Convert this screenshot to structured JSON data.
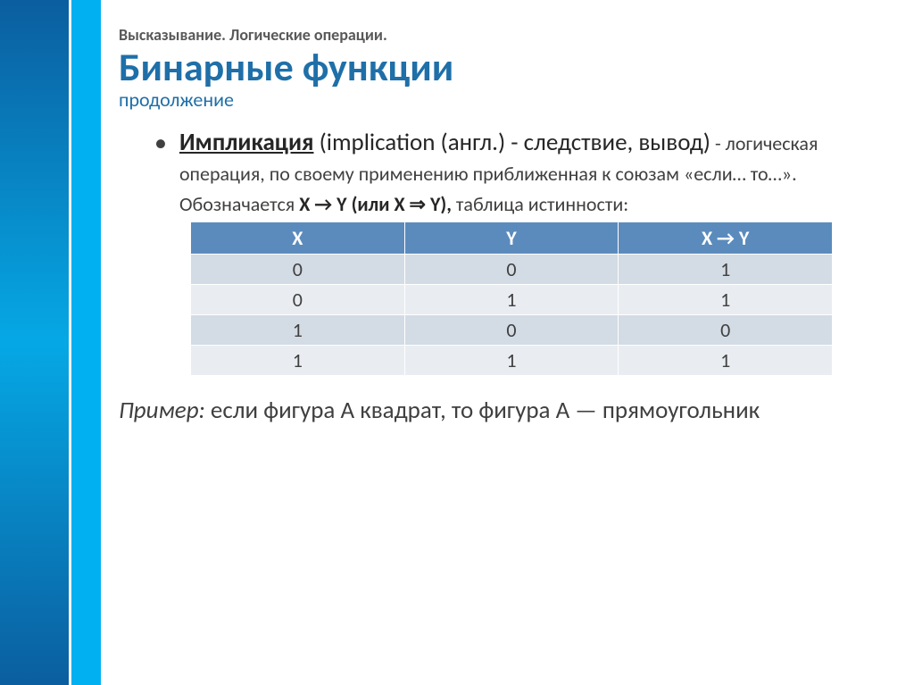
{
  "sidebar": {
    "gradient_top": "#0b5e9f",
    "gradient_mid": "#05a8e5",
    "gradient_bottom": "#0b5e9f",
    "solid_color": "#00b0f0"
  },
  "overline": "Высказывание. Логические операции.",
  "title": "Бинарные функции",
  "subtitle": "продолжение",
  "term": "Импликация",
  "after_term": " (implication (англ.) - следствие, вывод)",
  "description_plain": " - логическая операция, по своему применению приближенная к союзам «если… то…». Обозначается ",
  "notation_bold": "X → Y (или X ⇒ Y),",
  "description_tail": " таблица истинности:",
  "table": {
    "columns": [
      "X",
      "Y",
      "X → Y"
    ],
    "rows": [
      [
        "0",
        "0",
        "1"
      ],
      [
        "0",
        "1",
        "1"
      ],
      [
        "1",
        "0",
        "0"
      ],
      [
        "1",
        "1",
        "1"
      ]
    ],
    "header_bg": "#5b8bbd",
    "header_fg": "#ffffff",
    "row_even_bg": "#d3dbe4",
    "row_odd_bg": "#e9edf2",
    "fontsize": 22
  },
  "example_label": "Пример:",
  "example_text": " если фигура А квадрат, то фигура А — прямоугольник",
  "colors": {
    "title_color": "#1f6fa8",
    "overline_color": "#595959",
    "body_color": "#262626",
    "desc_color": "#404040",
    "background": "#ffffff"
  },
  "typography": {
    "title_size_pt": 44,
    "subtitle_size_pt": 22,
    "overline_size_pt": 18,
    "body_size_pt": 27,
    "desc_size_pt": 22
  }
}
